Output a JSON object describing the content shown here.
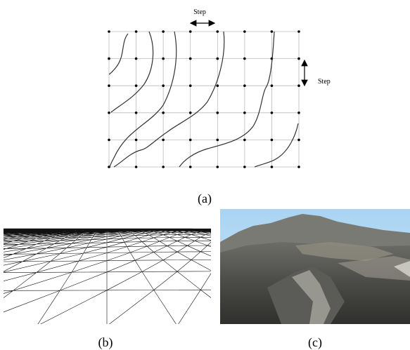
{
  "labels": {
    "step_horizontal": "Step",
    "step_vertical": "Step"
  },
  "captions": {
    "a": "(a)",
    "b": "(b)",
    "c": "(c)"
  }
}
